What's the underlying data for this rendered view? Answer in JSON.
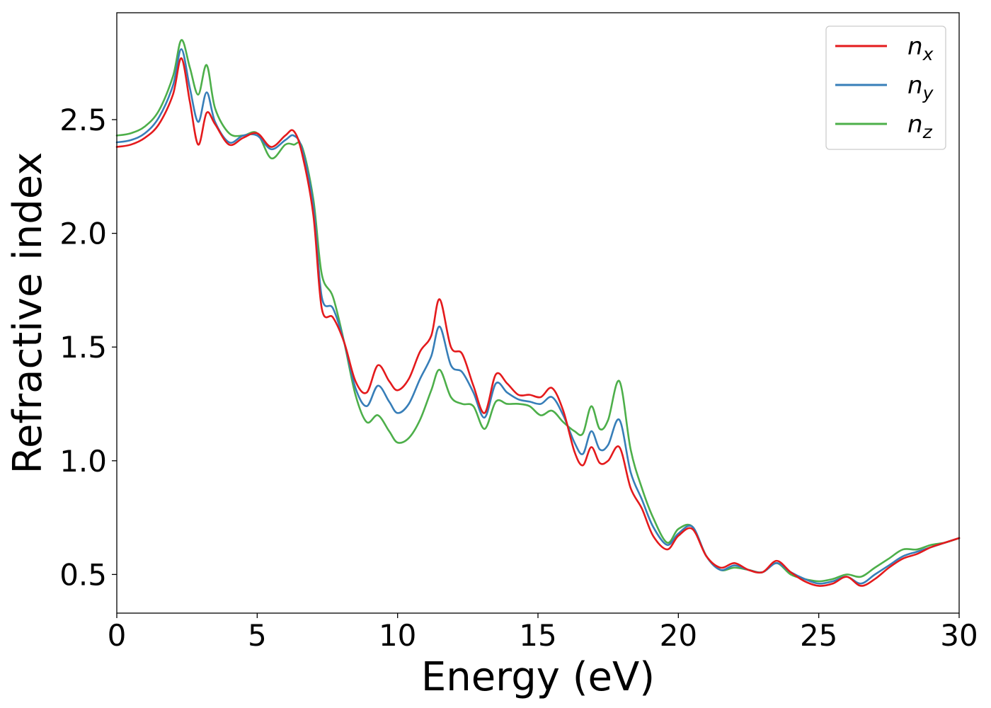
{
  "chart_data": {
    "type": "line",
    "title": "",
    "xlabel": "Energy (eV)",
    "ylabel": "Refractive index",
    "xlim": [
      0,
      30
    ],
    "ylim": [
      0.33,
      2.97
    ],
    "xticks": [
      0,
      5,
      10,
      15,
      20,
      25,
      30
    ],
    "xtick_labels": [
      "0",
      "5",
      "10",
      "15",
      "20",
      "25",
      "30"
    ],
    "yticks": [
      0.5,
      1.0,
      1.5,
      2.0,
      2.5
    ],
    "ytick_labels": [
      "0.5",
      "1.0",
      "1.5",
      "2.0",
      "2.5"
    ],
    "grid": false,
    "legend_position": "top-right",
    "series": [
      {
        "name": "n_x",
        "label_base": "n",
        "label_sub": "x",
        "color": "#e41a1c",
        "x": [
          0,
          0.5,
          1.0,
          1.5,
          2.0,
          2.3,
          2.6,
          2.9,
          3.2,
          3.5,
          4.0,
          4.5,
          5.0,
          5.5,
          6.0,
          6.3,
          6.6,
          7.0,
          7.3,
          7.7,
          8.1,
          8.5,
          8.9,
          9.3,
          9.7,
          10.0,
          10.4,
          10.8,
          11.2,
          11.5,
          11.9,
          12.3,
          12.7,
          13.1,
          13.5,
          13.9,
          14.3,
          14.7,
          15.1,
          15.5,
          15.9,
          16.3,
          16.6,
          16.9,
          17.2,
          17.5,
          17.9,
          18.3,
          18.7,
          19.1,
          19.6,
          20.0,
          20.5,
          21.0,
          21.5,
          22.0,
          22.5,
          23.0,
          23.5,
          24.0,
          24.5,
          25.0,
          25.5,
          26.0,
          26.5,
          27.0,
          27.5,
          28.0,
          28.5,
          29.0,
          29.5,
          30.0
        ],
        "y": [
          2.38,
          2.39,
          2.42,
          2.48,
          2.61,
          2.77,
          2.58,
          2.39,
          2.53,
          2.48,
          2.39,
          2.42,
          2.44,
          2.38,
          2.43,
          2.45,
          2.35,
          2.08,
          1.67,
          1.63,
          1.52,
          1.35,
          1.3,
          1.42,
          1.35,
          1.31,
          1.36,
          1.48,
          1.55,
          1.71,
          1.5,
          1.47,
          1.33,
          1.21,
          1.38,
          1.34,
          1.29,
          1.29,
          1.28,
          1.32,
          1.22,
          1.04,
          0.98,
          1.06,
          0.99,
          1.0,
          1.06,
          0.88,
          0.79,
          0.67,
          0.61,
          0.67,
          0.7,
          0.58,
          0.53,
          0.55,
          0.52,
          0.51,
          0.56,
          0.51,
          0.47,
          0.45,
          0.46,
          0.49,
          0.45,
          0.48,
          0.53,
          0.57,
          0.59,
          0.62,
          0.64,
          0.66
        ]
      },
      {
        "name": "n_y",
        "label_base": "n",
        "label_sub": "y",
        "color": "#377eb8",
        "x": [
          0,
          0.5,
          1.0,
          1.5,
          2.0,
          2.3,
          2.6,
          2.9,
          3.2,
          3.5,
          4.0,
          4.5,
          5.0,
          5.5,
          6.0,
          6.3,
          6.6,
          7.0,
          7.3,
          7.7,
          8.1,
          8.5,
          8.9,
          9.3,
          9.7,
          10.0,
          10.4,
          10.8,
          11.2,
          11.5,
          11.9,
          12.3,
          12.7,
          13.1,
          13.5,
          13.9,
          14.3,
          14.7,
          15.1,
          15.5,
          15.9,
          16.3,
          16.6,
          16.9,
          17.2,
          17.5,
          17.9,
          18.3,
          18.7,
          19.1,
          19.6,
          20.0,
          20.5,
          21.0,
          21.5,
          22.0,
          22.5,
          23.0,
          23.5,
          24.0,
          24.5,
          25.0,
          25.5,
          26.0,
          26.5,
          27.0,
          27.5,
          28.0,
          28.5,
          29.0,
          29.5,
          30.0
        ],
        "y": [
          2.4,
          2.41,
          2.44,
          2.51,
          2.65,
          2.81,
          2.64,
          2.49,
          2.62,
          2.49,
          2.4,
          2.43,
          2.43,
          2.37,
          2.41,
          2.43,
          2.37,
          2.12,
          1.72,
          1.67,
          1.52,
          1.32,
          1.24,
          1.33,
          1.26,
          1.21,
          1.25,
          1.36,
          1.46,
          1.59,
          1.42,
          1.39,
          1.3,
          1.19,
          1.34,
          1.3,
          1.27,
          1.26,
          1.25,
          1.28,
          1.2,
          1.08,
          1.03,
          1.13,
          1.05,
          1.07,
          1.18,
          0.95,
          0.83,
          0.71,
          0.63,
          0.68,
          0.71,
          0.58,
          0.52,
          0.54,
          0.52,
          0.51,
          0.55,
          0.51,
          0.48,
          0.46,
          0.47,
          0.49,
          0.46,
          0.5,
          0.54,
          0.58,
          0.6,
          0.62,
          0.64,
          0.66
        ]
      },
      {
        "name": "n_z",
        "label_base": "n",
        "label_sub": "z",
        "color": "#4daf4a",
        "x": [
          0,
          0.5,
          1.0,
          1.5,
          2.0,
          2.3,
          2.6,
          2.9,
          3.2,
          3.5,
          4.0,
          4.5,
          5.0,
          5.5,
          6.0,
          6.3,
          6.6,
          7.0,
          7.3,
          7.7,
          8.1,
          8.5,
          8.9,
          9.3,
          9.7,
          10.0,
          10.4,
          10.8,
          11.2,
          11.5,
          11.9,
          12.3,
          12.7,
          13.1,
          13.5,
          13.9,
          14.3,
          14.7,
          15.1,
          15.5,
          15.9,
          16.3,
          16.6,
          16.9,
          17.2,
          17.5,
          17.9,
          18.3,
          18.7,
          19.1,
          19.6,
          20.0,
          20.5,
          21.0,
          21.5,
          22.0,
          22.5,
          23.0,
          23.5,
          24.0,
          24.5,
          25.0,
          25.5,
          26.0,
          26.5,
          27.0,
          27.5,
          28.0,
          28.5,
          29.0,
          29.5,
          30.0
        ],
        "y": [
          2.43,
          2.44,
          2.47,
          2.54,
          2.69,
          2.85,
          2.73,
          2.61,
          2.74,
          2.55,
          2.44,
          2.43,
          2.44,
          2.33,
          2.39,
          2.39,
          2.38,
          2.15,
          1.82,
          1.72,
          1.52,
          1.29,
          1.17,
          1.2,
          1.13,
          1.08,
          1.1,
          1.18,
          1.31,
          1.4,
          1.28,
          1.25,
          1.24,
          1.14,
          1.26,
          1.25,
          1.25,
          1.24,
          1.2,
          1.22,
          1.17,
          1.13,
          1.12,
          1.24,
          1.14,
          1.18,
          1.35,
          1.05,
          0.88,
          0.75,
          0.64,
          0.7,
          0.71,
          0.58,
          0.52,
          0.53,
          0.52,
          0.51,
          0.55,
          0.5,
          0.48,
          0.47,
          0.48,
          0.5,
          0.49,
          0.53,
          0.57,
          0.61,
          0.61,
          0.63,
          0.64,
          0.66
        ]
      }
    ]
  }
}
